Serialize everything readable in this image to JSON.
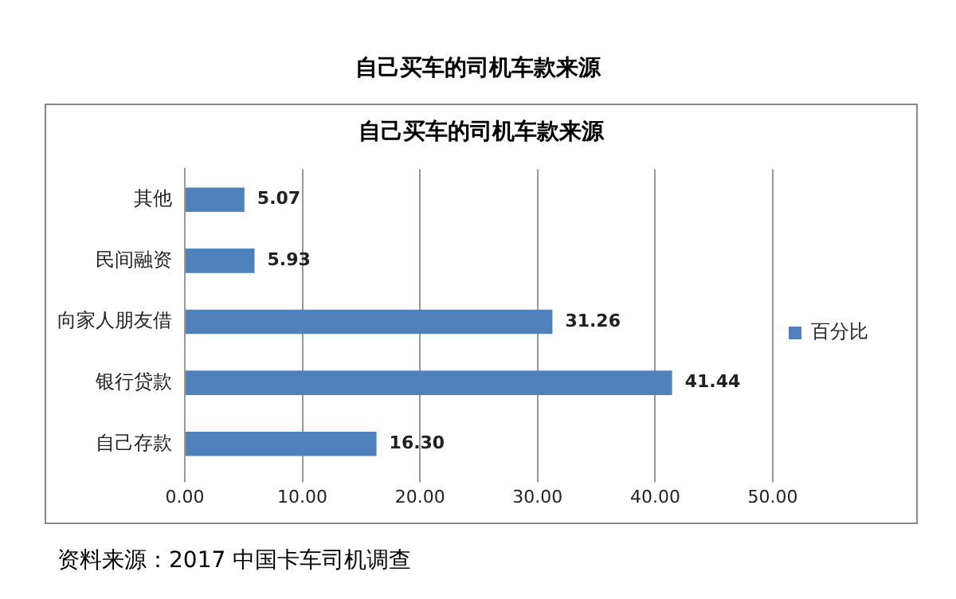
{
  "chart_data": {
    "type": "bar",
    "orientation": "horizontal",
    "title": "自己买车的司机车款来源",
    "subtitle": "自己买车的司机车款来源",
    "categories": [
      "其他",
      "民间融资",
      "向家人朋友借",
      "银行贷款",
      "自己存款"
    ],
    "series": [
      {
        "name": "百分比",
        "color": "#4f81bd",
        "values": [
          5.07,
          5.93,
          31.26,
          41.44,
          16.3
        ]
      }
    ],
    "value_labels": [
      "5.07",
      "5.93",
      "31.26",
      "41.44",
      "16.30"
    ],
    "xlim": [
      0,
      50
    ],
    "xticks": [
      {
        "value": 0,
        "label": "0.00"
      },
      {
        "value": 10,
        "label": "10.00"
      },
      {
        "value": 20,
        "label": "20.00"
      },
      {
        "value": 30,
        "label": "30.00"
      },
      {
        "value": 40,
        "label": "40.00"
      },
      {
        "value": 50,
        "label": "50.00"
      }
    ],
    "grid": "x",
    "legend": "right",
    "annotations": [
      "资料来源：2017  中国卡车司机调查"
    ]
  }
}
